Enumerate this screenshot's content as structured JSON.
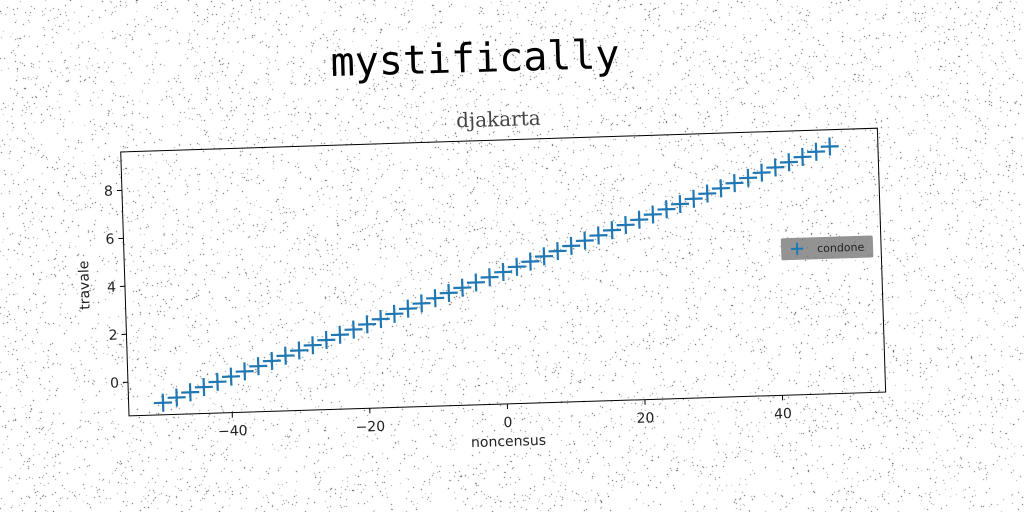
{
  "suptitle": "mystifically",
  "chart_data": {
    "type": "scatter",
    "title": "djakarta",
    "xlabel": "noncensus",
    "ylabel": "travale",
    "xlim": [
      -55,
      55
    ],
    "ylim": [
      -1.4,
      9.6
    ],
    "xticks": [
      -40,
      -20,
      0,
      20,
      40
    ],
    "yticks": [
      0,
      2,
      4,
      6,
      8
    ],
    "grid": false,
    "legend_position": "right",
    "series": [
      {
        "name": "condone",
        "marker": "plus",
        "color": "#1f77b4",
        "x": [
          -50,
          -48,
          -46,
          -44,
          -42,
          -40,
          -38,
          -36,
          -34,
          -32,
          -30,
          -28,
          -26,
          -24,
          -22,
          -20,
          -18,
          -16,
          -14,
          -12,
          -10,
          -8,
          -6,
          -4,
          -2,
          0,
          2,
          4,
          6,
          8,
          10,
          12,
          14,
          16,
          18,
          20,
          22,
          24,
          26,
          28,
          30,
          32,
          34,
          36,
          38,
          40,
          42,
          44,
          46,
          48
        ],
        "y": [
          -0.9,
          -0.7,
          -0.5,
          -0.3,
          -0.1,
          0.1,
          0.3,
          0.5,
          0.7,
          0.9,
          1.1,
          1.3,
          1.5,
          1.7,
          1.9,
          2.1,
          2.3,
          2.5,
          2.7,
          2.9,
          3.1,
          3.3,
          3.5,
          3.7,
          3.9,
          4.1,
          4.3,
          4.5,
          4.7,
          4.9,
          5.1,
          5.3,
          5.5,
          5.7,
          5.9,
          6.1,
          6.3,
          6.5,
          6.7,
          6.9,
          7.1,
          7.3,
          7.5,
          7.7,
          7.9,
          8.1,
          8.3,
          8.5,
          8.7,
          8.9
        ]
      }
    ]
  }
}
